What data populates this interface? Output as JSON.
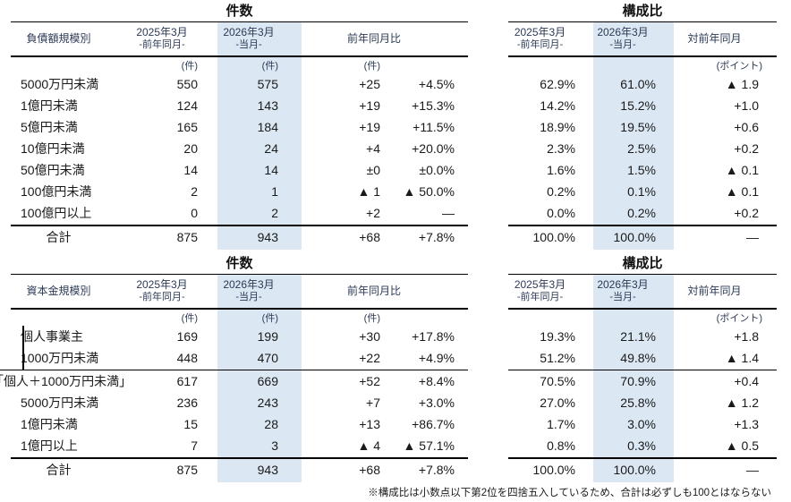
{
  "colors": {
    "highlight": "#dbe7f3",
    "rule": "#000000",
    "header_text": "#2b3a55"
  },
  "footnote": "※構成比は小数点以下第2位を四捨五入しているため、合計は必ずしも100とはならない",
  "tables": [
    {
      "count_title": "件数",
      "share_title": "構成比",
      "row_header": "負債額規模別",
      "col_prev": "2025年3月",
      "col_prev_sub": "-前年同月-",
      "col_curr": "2026年3月",
      "col_curr_sub": "-当月-",
      "col_yoy": "前年同月比",
      "col_share_delta": "対前年同月",
      "unit_count": "(件)",
      "unit_point": "(ポイント)",
      "rows": [
        {
          "label": "5000万円未満",
          "prev": "550",
          "curr": "575",
          "diff": "+25",
          "pct": "+4.5%",
          "share_prev": "62.9%",
          "share_curr": "61.0%",
          "share_delta": "▲ 1.9"
        },
        {
          "label": "1億円未満",
          "prev": "124",
          "curr": "143",
          "diff": "+19",
          "pct": "+15.3%",
          "share_prev": "14.2%",
          "share_curr": "15.2%",
          "share_delta": "+1.0"
        },
        {
          "label": "5億円未満",
          "prev": "165",
          "curr": "184",
          "diff": "+19",
          "pct": "+11.5%",
          "share_prev": "18.9%",
          "share_curr": "19.5%",
          "share_delta": "+0.6"
        },
        {
          "label": "10億円未満",
          "prev": "20",
          "curr": "24",
          "diff": "+4",
          "pct": "+20.0%",
          "share_prev": "2.3%",
          "share_curr": "2.5%",
          "share_delta": "+0.2"
        },
        {
          "label": "50億円未満",
          "prev": "14",
          "curr": "14",
          "diff": "±0",
          "pct": "±0.0%",
          "share_prev": "1.6%",
          "share_curr": "1.5%",
          "share_delta": "▲ 0.1"
        },
        {
          "label": "100億円未満",
          "prev": "2",
          "curr": "1",
          "diff": "▲ 1",
          "pct": "▲ 50.0%",
          "share_prev": "0.2%",
          "share_curr": "0.1%",
          "share_delta": "▲ 0.1"
        },
        {
          "label": "100億円以上",
          "prev": "0",
          "curr": "2",
          "diff": "+2",
          "pct": "—",
          "share_prev": "0.0%",
          "share_curr": "0.2%",
          "share_delta": "+0.2"
        }
      ],
      "total": {
        "label": "合計",
        "prev": "875",
        "curr": "943",
        "diff": "+68",
        "pct": "+7.8%",
        "share_prev": "100.0%",
        "share_curr": "100.0%",
        "share_delta": "—"
      }
    },
    {
      "count_title": "件数",
      "share_title": "構成比",
      "row_header": "資本金規模別",
      "col_prev": "2025年3月",
      "col_prev_sub": "-前年同月-",
      "col_curr": "2026年3月",
      "col_curr_sub": "-当月-",
      "col_yoy": "前年同月比",
      "col_share_delta": "対前年同月",
      "unit_count": "(件)",
      "unit_point": "(ポイント)",
      "rows": [
        {
          "label": "個人事業主",
          "prev": "169",
          "curr": "199",
          "diff": "+30",
          "pct": "+17.8%",
          "share_prev": "19.3%",
          "share_curr": "21.1%",
          "share_delta": "+1.8"
        },
        {
          "label": "1000万円未満",
          "prev": "448",
          "curr": "470",
          "diff": "+22",
          "pct": "+4.9%",
          "share_prev": "51.2%",
          "share_curr": "49.8%",
          "share_delta": "▲ 1.4"
        },
        {
          "label": "「個人＋1000万円未満」",
          "prev": "617",
          "curr": "669",
          "diff": "+52",
          "pct": "+8.4%",
          "share_prev": "70.5%",
          "share_curr": "70.9%",
          "share_delta": "+0.4"
        },
        {
          "label": "5000万円未満",
          "prev": "236",
          "curr": "243",
          "diff": "+7",
          "pct": "+3.0%",
          "share_prev": "27.0%",
          "share_curr": "25.8%",
          "share_delta": "▲ 1.2"
        },
        {
          "label": "1億円未満",
          "prev": "15",
          "curr": "28",
          "diff": "+13",
          "pct": "+86.7%",
          "share_prev": "1.7%",
          "share_curr": "3.0%",
          "share_delta": "+1.3"
        },
        {
          "label": "1億円以上",
          "prev": "7",
          "curr": "3",
          "diff": "▲ 4",
          "pct": "▲ 57.1%",
          "share_prev": "0.8%",
          "share_curr": "0.3%",
          "share_delta": "▲ 0.5"
        }
      ],
      "total": {
        "label": "合計",
        "prev": "875",
        "curr": "943",
        "diff": "+68",
        "pct": "+7.8%",
        "share_prev": "100.0%",
        "share_curr": "100.0%",
        "share_delta": "—"
      }
    }
  ]
}
